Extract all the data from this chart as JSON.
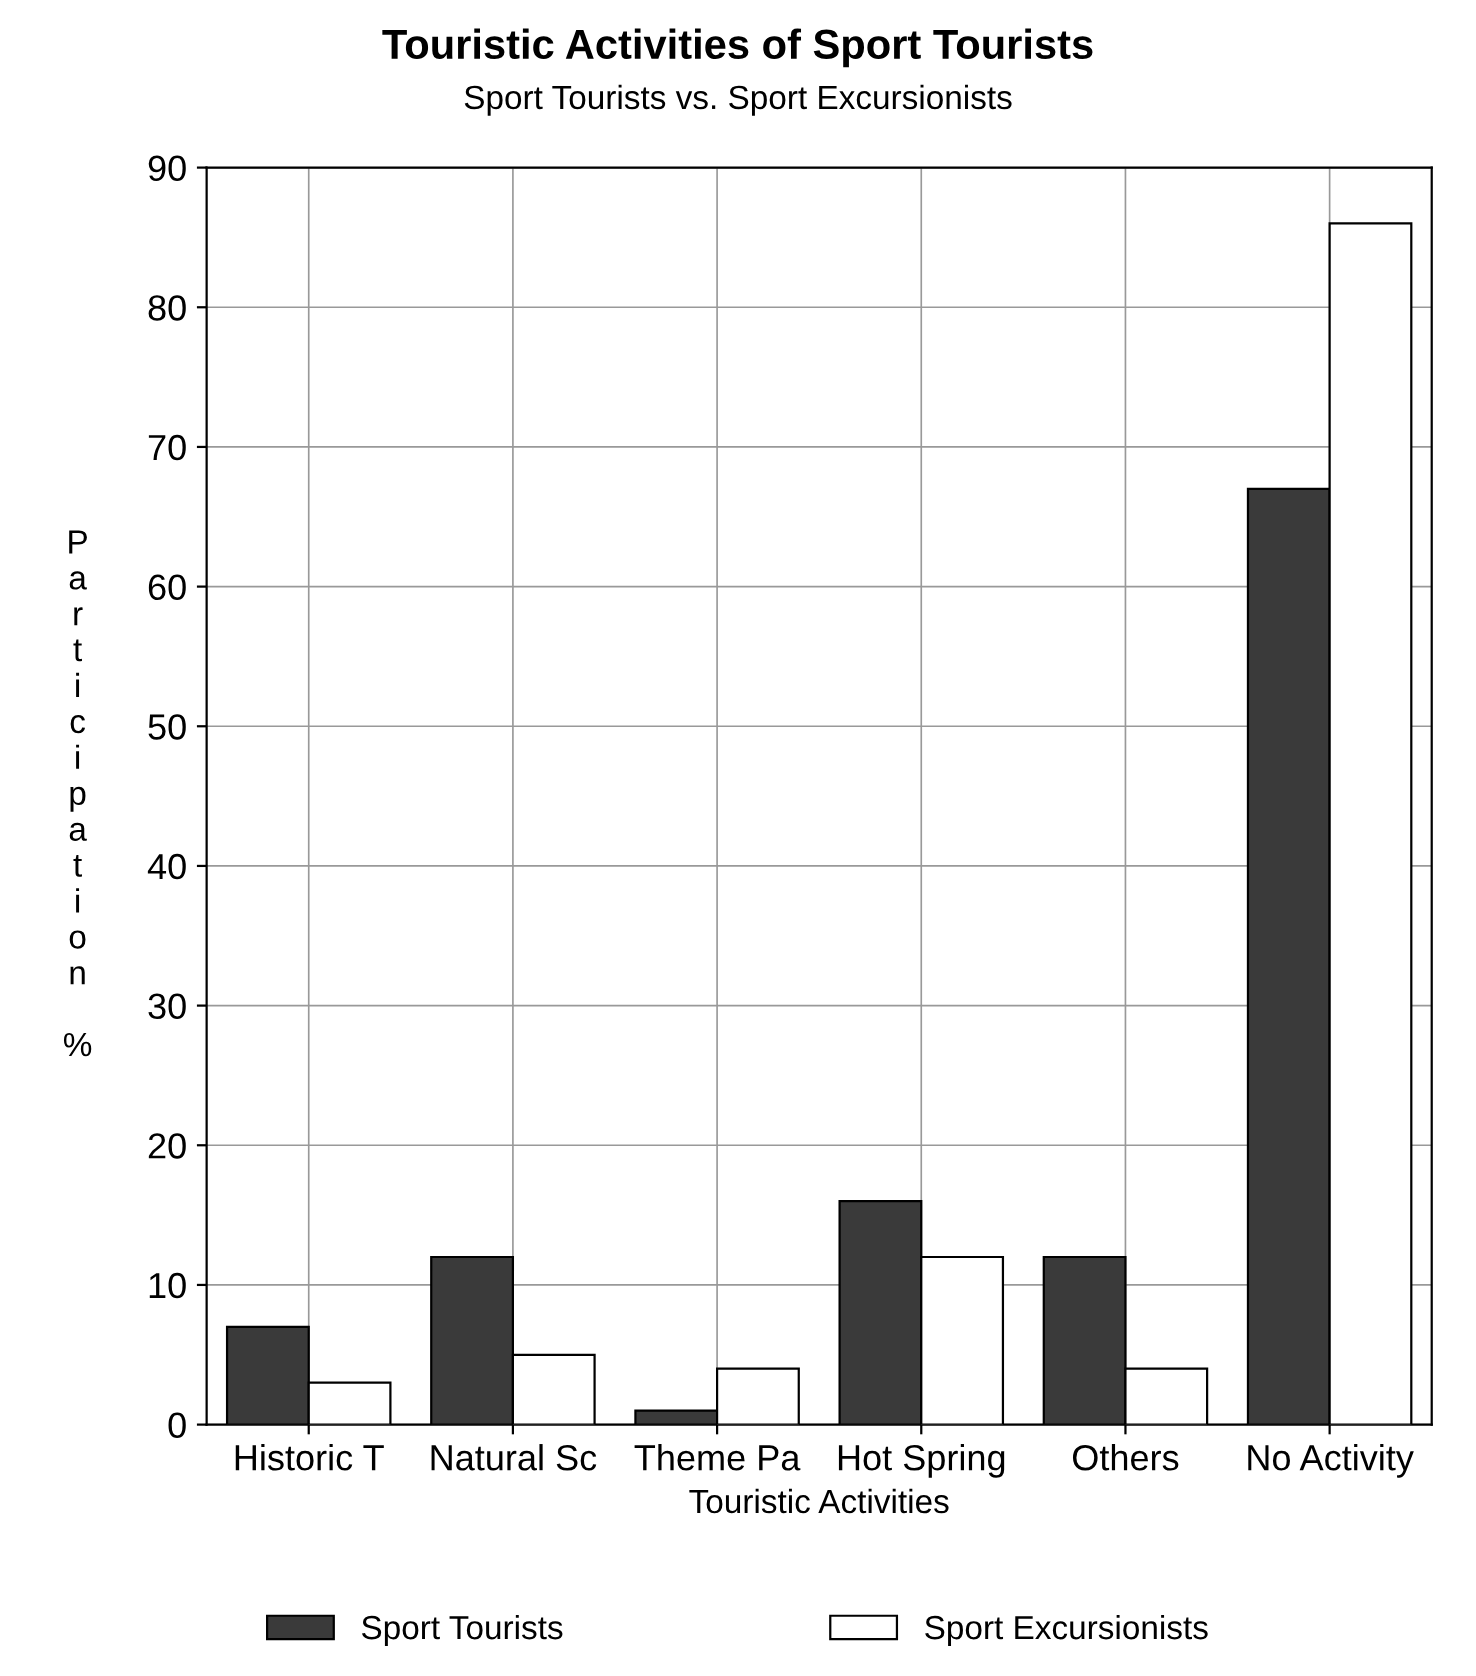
{
  "chart_data": {
    "type": "bar",
    "title": "Touristic Activities of Sport Tourists",
    "subtitle": "Sport Tourists vs. Sport Excursionists",
    "xlabel": "Touristic Activities",
    "ylabel": "Participation %",
    "categories": [
      "Historic T",
      "Natural Sc",
      "Theme Pa",
      "Hot Spring",
      "Others",
      "No Activity"
    ],
    "series": [
      {
        "name": "Sport Tourists",
        "color": "#3a3a3a",
        "values": [
          7,
          12,
          1,
          16,
          12,
          67
        ]
      },
      {
        "name": "Sport Excursionists",
        "color": "#ffffff",
        "values": [
          3,
          5,
          4,
          12,
          4,
          86
        ]
      }
    ],
    "ylim": [
      0,
      90
    ],
    "yticks": [
      0,
      10,
      20,
      30,
      40,
      50,
      60,
      70,
      80,
      90
    ],
    "grid": true,
    "legend": "bottom"
  }
}
